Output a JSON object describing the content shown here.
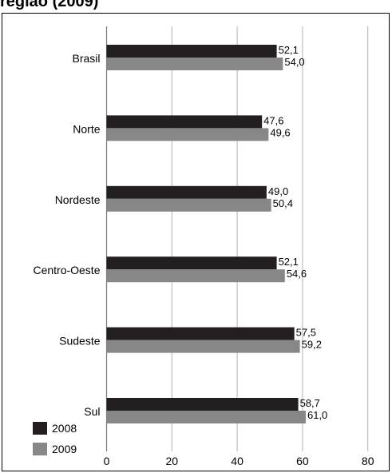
{
  "title_fragment": "região (2009)",
  "chart_data": {
    "type": "bar",
    "orientation": "horizontal",
    "categories": [
      "Brasil",
      "Norte",
      "Nordeste",
      "Centro-Oeste",
      "Sudeste",
      "Sul"
    ],
    "series": [
      {
        "name": "2008",
        "color": "#231f20",
        "values": [
          52.1,
          47.6,
          49.0,
          52.1,
          57.5,
          58.7
        ],
        "labels": [
          "52,1",
          "47,6",
          "49,0",
          "52,1",
          "57,5",
          "58,7"
        ]
      },
      {
        "name": "2009",
        "color": "#878787",
        "values": [
          54.0,
          49.6,
          50.4,
          54.6,
          59.2,
          61.0
        ],
        "labels": [
          "54,0",
          "49,6",
          "50,4",
          "54,6",
          "59,2",
          "61,0"
        ]
      }
    ],
    "xlim": [
      0,
      80
    ],
    "xticks": [
      "0",
      "20",
      "40",
      "60",
      "80"
    ],
    "grid": "vertical",
    "legend_position": "bottom-left"
  }
}
